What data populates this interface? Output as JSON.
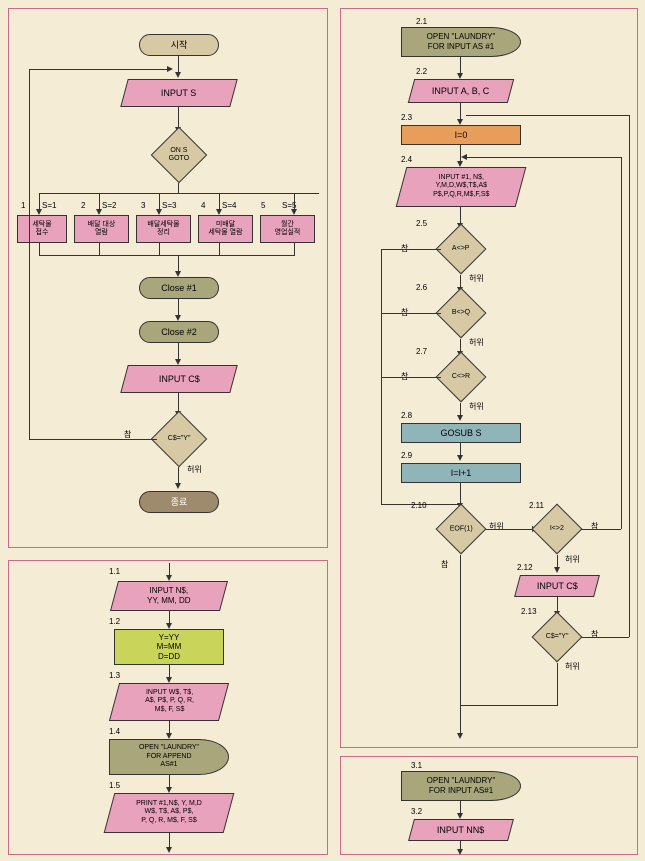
{
  "colors": {
    "bg": "#f5ecd6",
    "border": "#c96b8a",
    "pink": "#e8a2bb",
    "olive": "#a8a67a",
    "beige": "#d8c9a5",
    "orange": "#e89d5a",
    "teal": "#8fb5b8",
    "yellow": "#c9d45a",
    "brown": "#9e8a6c"
  },
  "panel1": {
    "start": "시작",
    "input_s": "INPUT S",
    "on_s_goto": "ON S\nGOTO",
    "s1_label": "S=1",
    "s1_num": "1",
    "s1_text": "세탁물\n접수",
    "s2_label": "S=2",
    "s2_num": "2",
    "s2_text": "배달 대상\n열람",
    "s3_label": "S=3",
    "s3_num": "3",
    "s3_text": "배달세탁물\n정리",
    "s4_label": "S=4",
    "s4_num": "4",
    "s4_text": "미배달\n세탁물 열람",
    "s5_label": "S=5",
    "s5_num": "5",
    "s5_text": "월간\n영업실적",
    "close1": "Close #1",
    "close2": "Close #2",
    "input_cs": "INPUT C$",
    "cs_y": "C$=\"Y\"",
    "true": "참",
    "false": "허위",
    "end": "종료"
  },
  "panel2": {
    "n21": "2.1",
    "t21": "OPEN \"LAUNDRY\"\nFOR INPUT AS #1",
    "n22": "2.2",
    "t22": "INPUT A, B, C",
    "n23": "2.3",
    "t23": "I=0",
    "n24": "2.4",
    "t24": "INPUT #1, N$,\nY,M,D,W$,T$,A$\nP$,P,Q,R,M$,F,S$",
    "n25": "2.5",
    "t25": "A<>P",
    "n26": "2.6",
    "t26": "B<>Q",
    "n27": "2.7",
    "t27": "C<>R",
    "n28": "2.8",
    "t28": "GOSUB S",
    "n29": "2.9",
    "t29": "I=I+1",
    "n210": "2.10",
    "t210": "EOF(1)",
    "n211": "2.11",
    "t211": "I<>2",
    "n212": "2.12",
    "t212": "INPUT C$",
    "n213": "2.13",
    "t213": "C$=\"Y\"",
    "true": "참",
    "false": "허위"
  },
  "panel3": {
    "n11": "1.1",
    "t11": "INPUT N$,\nYY, MM, DD",
    "n12": "1.2",
    "t12": "Y=YY\nM=MM\nD=DD",
    "n13": "1.3",
    "t13": "INPUT W$, T$,\nA$, P$, P, Q, R,\nM$, F, S$",
    "n14": "1.4",
    "t14": "OPEN \"LAUNDRY\"\nFOR APPEND\nAS#1",
    "n15": "1.5",
    "t15": "PRINT #1,N$, Y, M,D\nW$, T$, A$, P$,\nP, Q, R, M$, F, S$"
  },
  "panel4": {
    "n31": "3.1",
    "t31": "OPEN \"LAUNDRY\"\nFOR INPUT AS#1",
    "n32": "3.2",
    "t32": "INPUT NN$"
  }
}
